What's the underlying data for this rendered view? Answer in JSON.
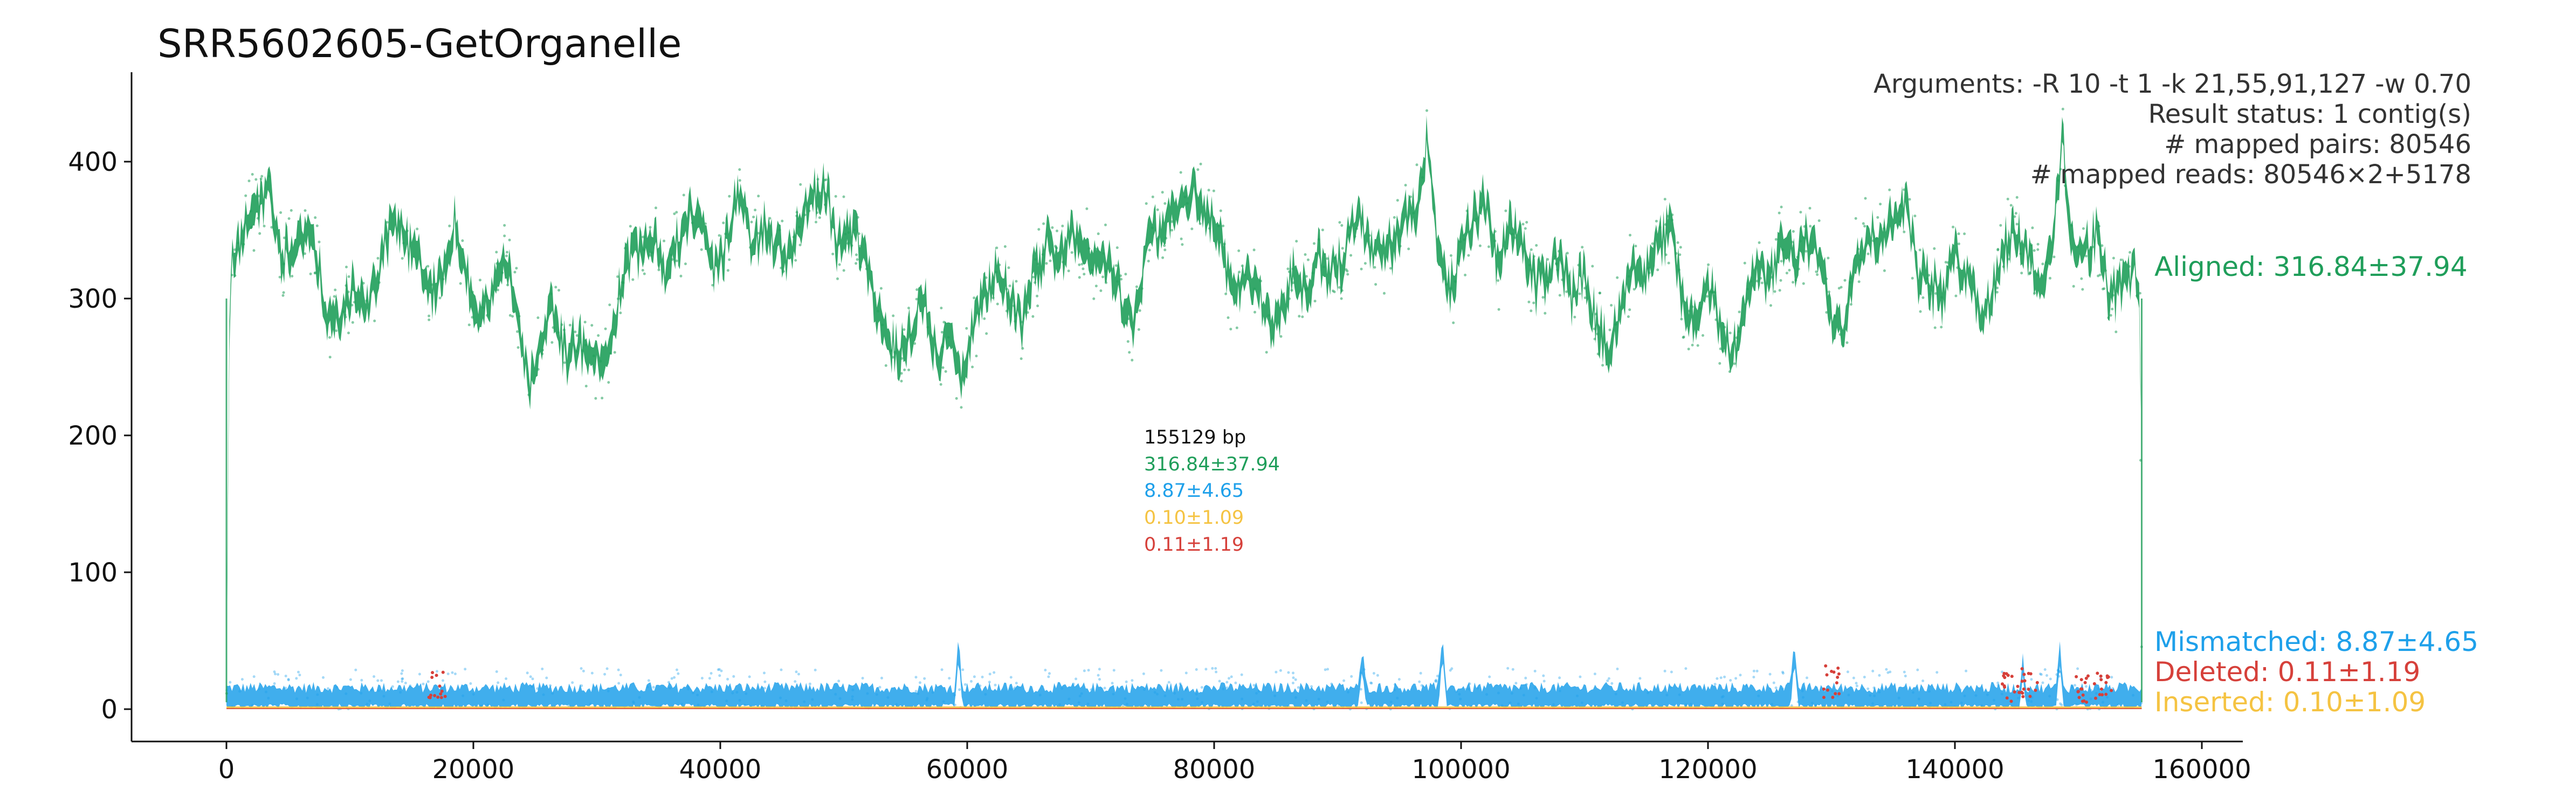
{
  "colors": {
    "aligned": "#1f9e5a",
    "mismatched": "#1ea0ea",
    "deleted": "#d6403a",
    "inserted": "#f5c342",
    "text": "#333333"
  },
  "chart_data": {
    "type": "scatter",
    "title": "SRR5602605-GetOrganelle",
    "xlabel": "",
    "ylabel": "",
    "xlim": [
      -8000,
      163000
    ],
    "ylim": [
      -20,
      465
    ],
    "x_ticks": [
      0,
      20000,
      40000,
      60000,
      80000,
      100000,
      120000,
      140000,
      160000
    ],
    "y_ticks": [
      0,
      100,
      200,
      300,
      400
    ],
    "grid": false,
    "genome_length": 155129,
    "arguments": [
      "Arguments: -R 10 -t 1 -k 21,55,91,127 -w 0.70",
      "Result status: 1 contig(s)",
      "# mapped pairs: 80546",
      "# mapped reads: 80546×2+5178"
    ],
    "center_stats": [
      "155129 bp",
      "316.84±37.94",
      "8.87±4.65",
      "0.10±1.09",
      "0.11±1.19"
    ],
    "series": [
      {
        "name": "Aligned",
        "label": "Aligned: 316.84±37.94",
        "color_key": "aligned",
        "mean": 316.84,
        "sd": 37.94,
        "profile_x": [
          0,
          300,
          1500,
          2500,
          3500,
          4500,
          5500,
          6500,
          7500,
          8500,
          9500,
          10500,
          11500,
          12500,
          13500,
          14500,
          15500,
          16500,
          17500,
          18500,
          19500,
          20500,
          21500,
          22500,
          23500,
          24500,
          25500,
          26500,
          27500,
          28500,
          29500,
          30500,
          31500,
          32500,
          33500,
          34500,
          35500,
          36500,
          37500,
          38500,
          39500,
          40500,
          41500,
          42500,
          43500,
          44500,
          45500,
          46500,
          47500,
          48500,
          49500,
          50500,
          51500,
          52500,
          53500,
          54500,
          55500,
          56500,
          57500,
          58500,
          59500,
          60500,
          61500,
          62500,
          63500,
          64500,
          65500,
          66500,
          67500,
          68500,
          69500,
          70500,
          71500,
          72500,
          73500,
          74500,
          75500,
          76500,
          77500,
          78500,
          79500,
          80500,
          81500,
          82500,
          83500,
          84500,
          85500,
          86500,
          87500,
          88500,
          89500,
          90500,
          91500,
          92500,
          93500,
          94500,
          95500,
          96500,
          97300,
          98000,
          99000,
          100000,
          101000,
          102000,
          103000,
          104000,
          105000,
          106000,
          107000,
          108000,
          109000,
          110000,
          111000,
          112000,
          113000,
          114000,
          115000,
          116000,
          117000,
          118000,
          119000,
          120000,
          121000,
          122000,
          123000,
          124000,
          125000,
          126000,
          127000,
          128000,
          129000,
          130000,
          131000,
          132000,
          133000,
          134000,
          135000,
          136000,
          137000,
          138000,
          139000,
          140000,
          141000,
          142000,
          143000,
          144000,
          145000,
          146000,
          147000,
          148000,
          148700,
          149500,
          150500,
          151500,
          152500,
          153500,
          154500,
          155000,
          155129
        ],
        "profile_y": [
          20,
          320,
          350,
          370,
          380,
          330,
          340,
          350,
          320,
          280,
          290,
          310,
          290,
          330,
          360,
          340,
          330,
          300,
          320,
          360,
          310,
          290,
          300,
          330,
          300,
          230,
          280,
          290,
          260,
          270,
          255,
          250,
          290,
          330,
          340,
          350,
          320,
          340,
          360,
          350,
          320,
          340,
          380,
          340,
          350,
          340,
          330,
          360,
          370,
          380,
          340,
          350,
          340,
          300,
          270,
          260,
          280,
          300,
          260,
          270,
          240,
          280,
          300,
          320,
          300,
          280,
          320,
          340,
          330,
          350,
          340,
          320,
          330,
          300,
          280,
          340,
          350,
          360,
          370,
          380,
          360,
          340,
          300,
          320,
          310,
          280,
          290,
          320,
          300,
          330,
          320,
          330,
          360,
          340,
          330,
          340,
          360,
          370,
          420,
          350,
          300,
          330,
          360,
          370,
          320,
          350,
          340,
          310,
          320,
          330,
          300,
          320,
          280,
          260,
          300,
          330,
          320,
          340,
          350,
          300,
          280,
          310,
          280,
          260,
          300,
          320,
          310,
          340,
          330,
          340,
          330,
          290,
          280,
          330,
          350,
          340,
          360,
          370,
          320,
          310,
          300,
          330,
          320,
          290,
          300,
          340,
          350,
          330,
          310,
          340,
          420,
          340,
          330,
          350,
          300,
          310,
          320,
          305,
          20
        ]
      },
      {
        "name": "Mismatched",
        "label": "Mismatched: 8.87±4.65",
        "color_key": "mismatched",
        "mean": 8.87,
        "sd": 4.65,
        "peaks": [
          [
            59300,
            45
          ],
          [
            92000,
            38
          ],
          [
            98500,
            48
          ],
          [
            127000,
            42
          ],
          [
            148500,
            40
          ],
          [
            145500,
            30
          ]
        ]
      },
      {
        "name": "Deleted",
        "label": "Deleted: 0.11±1.19",
        "color_key": "deleted",
        "mean": 0.11,
        "sd": 1.19
      },
      {
        "name": "Inserted",
        "label": "Inserted: 0.10±1.09",
        "color_key": "inserted",
        "mean": 0.1,
        "sd": 1.09
      }
    ]
  }
}
